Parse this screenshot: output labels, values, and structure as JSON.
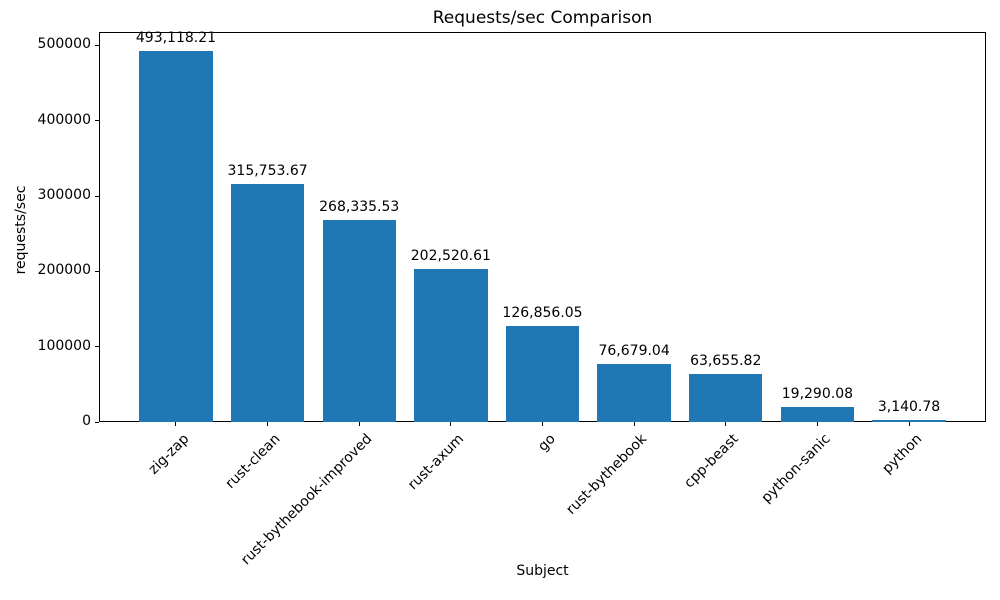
{
  "chart_data": {
    "type": "bar",
    "title": "Requests/sec Comparison",
    "xlabel": "Subject",
    "ylabel": "requests/sec",
    "categories": [
      "zig-zap",
      "rust-clean",
      "rust-bythebook-improved",
      "rust-axum",
      "go",
      "rust-bythebook",
      "cpp-beast",
      "python-sanic",
      "python"
    ],
    "values": [
      493118.21,
      315753.67,
      268335.53,
      202520.61,
      126856.05,
      76679.04,
      63655.82,
      19290.08,
      3140.78
    ],
    "value_labels": [
      "493,118.21",
      "315,753.67",
      "268,335.53",
      "202,520.61",
      "126,856.05",
      "76,679.04",
      "63,655.82",
      "19,290.08",
      "3,140.78"
    ],
    "y_ticks": [
      0,
      100000,
      200000,
      300000,
      400000,
      500000
    ],
    "y_tick_labels": [
      "0",
      "100000",
      "200000",
      "300000",
      "400000",
      "500000"
    ],
    "ylim": [
      0,
      517774
    ],
    "bar_color": "#1f77b4",
    "grid": false,
    "legend_position": "none"
  }
}
